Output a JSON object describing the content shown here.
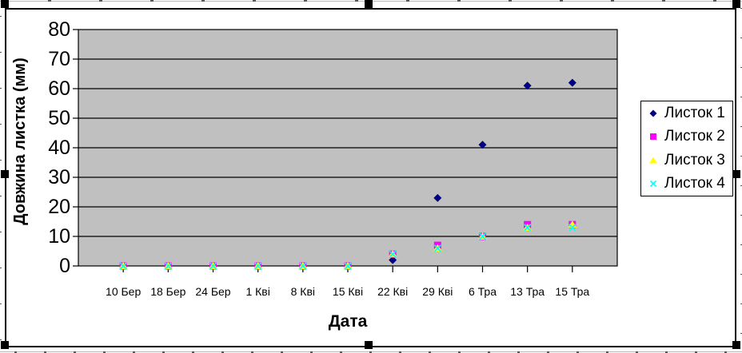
{
  "chart_data": {
    "type": "scatter",
    "title": "",
    "xlabel": "Дата",
    "ylabel": "Довжина листка (мм)",
    "ylim": [
      0,
      80
    ],
    "yticks": [
      0,
      10,
      20,
      30,
      40,
      50,
      60,
      70,
      80
    ],
    "grid": true,
    "plot_bg_color": "#C0C0C0",
    "gridline_color": "#000000",
    "legend_position": "right",
    "categories": [
      "10 Бер",
      "18 Бер",
      "24 Бер",
      "1 Кві",
      "8 Кві",
      "15 Кві",
      "22 Кві",
      "29 Кві",
      "6 Тра",
      "13 Тра",
      "15 Тра"
    ],
    "series": [
      {
        "name": "Листок 1",
        "marker": "diamond",
        "color": "#000080",
        "values": [
          0,
          0,
          0,
          0,
          0,
          0,
          2,
          23,
          41,
          61,
          62
        ]
      },
      {
        "name": "Листок 2",
        "marker": "square",
        "color": "#FF00FF",
        "values": [
          0,
          0,
          0,
          0,
          0,
          0,
          4,
          7,
          10,
          14,
          14
        ]
      },
      {
        "name": "Листок 3",
        "marker": "triangle",
        "color": "#FFFF00",
        "values": [
          0,
          0,
          0,
          0,
          0,
          0,
          4,
          6,
          10,
          13,
          14
        ]
      },
      {
        "name": "Листок 4",
        "marker": "x",
        "color": "#00FFFF",
        "values": [
          0,
          0,
          0,
          0,
          0,
          0,
          4,
          6,
          10,
          13,
          13
        ]
      }
    ]
  }
}
